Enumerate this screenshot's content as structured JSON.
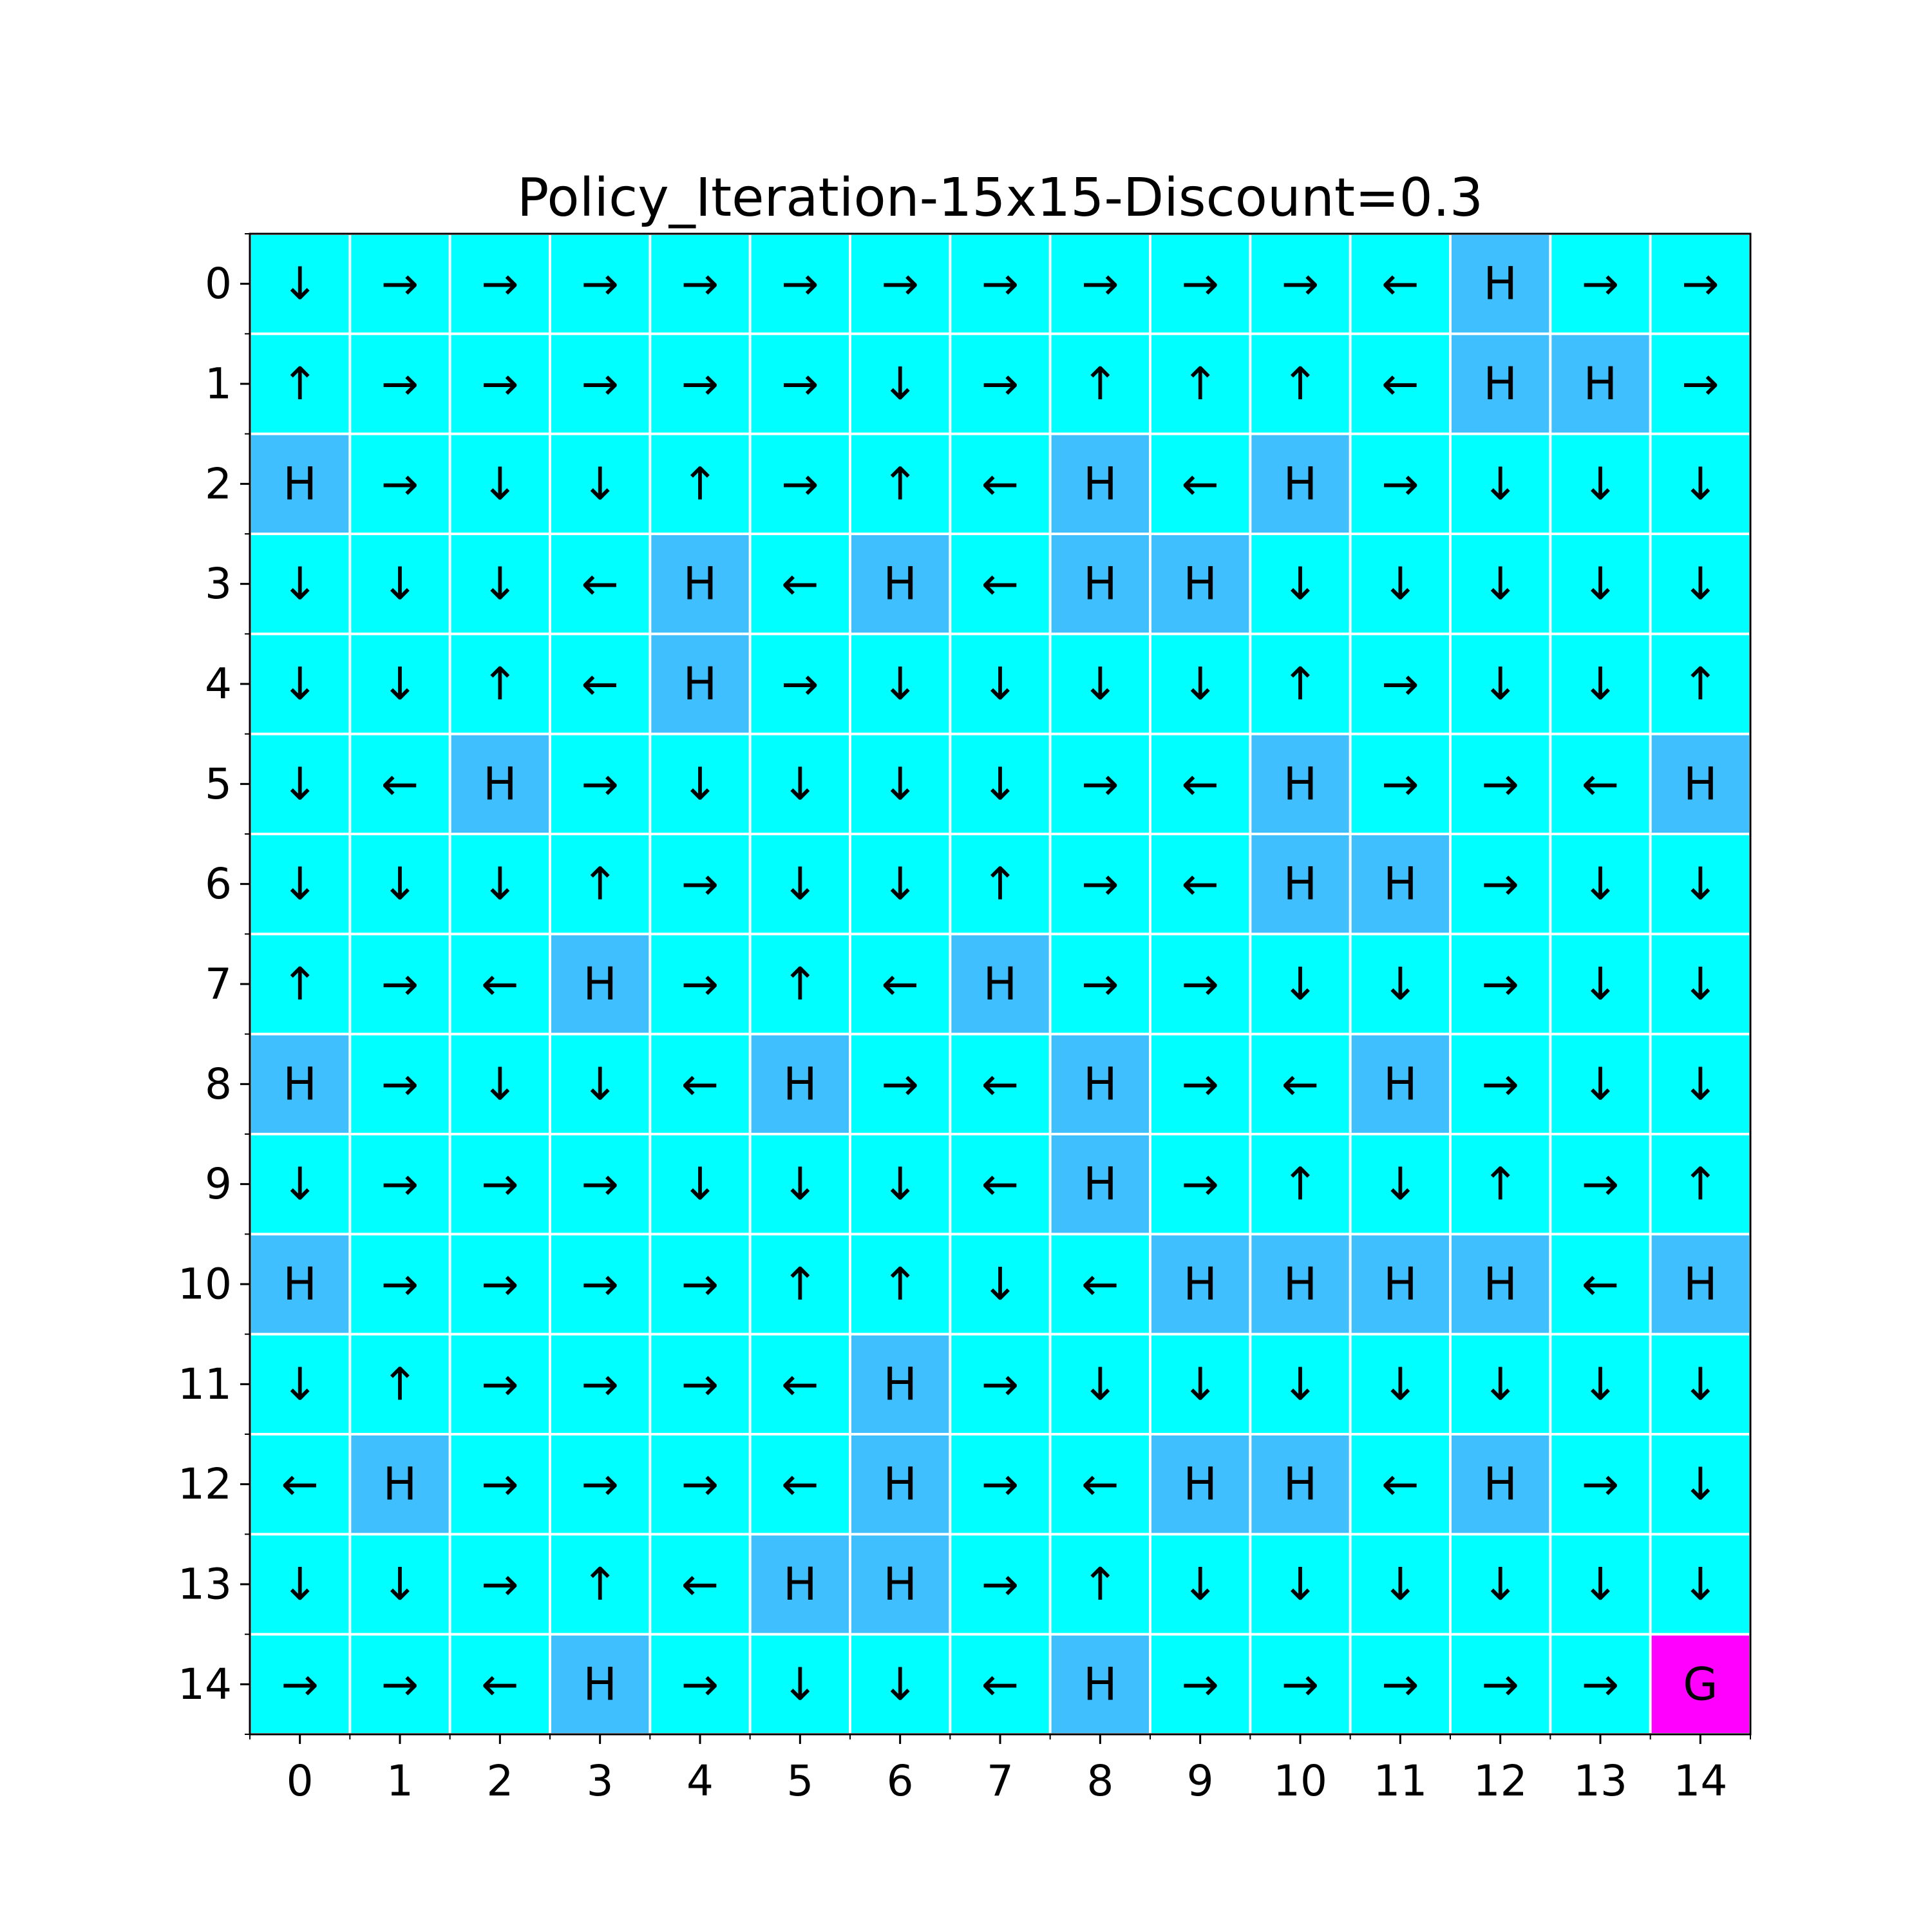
{
  "chart_data": {
    "type": "heatmap",
    "title": "Policy_Iteration-15x15-Discount=0.3",
    "xlabel": "",
    "ylabel": "",
    "x_ticks": [
      "0",
      "1",
      "2",
      "3",
      "4",
      "5",
      "6",
      "7",
      "8",
      "9",
      "10",
      "11",
      "12",
      "13",
      "14"
    ],
    "y_ticks": [
      "0",
      "1",
      "2",
      "3",
      "4",
      "5",
      "6",
      "7",
      "8",
      "9",
      "10",
      "11",
      "12",
      "13",
      "14"
    ],
    "grid": [
      [
        "↓",
        "→",
        "→",
        "→",
        "→",
        "→",
        "→",
        "→",
        "→",
        "→",
        "→",
        "←",
        "H",
        "→",
        "→"
      ],
      [
        "↑",
        "→",
        "→",
        "→",
        "→",
        "→",
        "↓",
        "→",
        "↑",
        "↑",
        "↑",
        "←",
        "H",
        "H",
        "→"
      ],
      [
        "H",
        "→",
        "↓",
        "↓",
        "↑",
        "→",
        "↑",
        "←",
        "H",
        "←",
        "H",
        "→",
        "↓",
        "↓",
        "↓"
      ],
      [
        "↓",
        "↓",
        "↓",
        "←",
        "H",
        "←",
        "H",
        "←",
        "H",
        "H",
        "↓",
        "↓",
        "↓",
        "↓",
        "↓"
      ],
      [
        "↓",
        "↓",
        "↑",
        "←",
        "H",
        "→",
        "↓",
        "↓",
        "↓",
        "↓",
        "↑",
        "→",
        "↓",
        "↓",
        "↑"
      ],
      [
        "↓",
        "←",
        "H",
        "→",
        "↓",
        "↓",
        "↓",
        "↓",
        "→",
        "←",
        "H",
        "→",
        "→",
        "←",
        "H"
      ],
      [
        "↓",
        "↓",
        "↓",
        "↑",
        "→",
        "↓",
        "↓",
        "↑",
        "→",
        "←",
        "H",
        "H",
        "→",
        "↓",
        "↓"
      ],
      [
        "↑",
        "→",
        "←",
        "H",
        "→",
        "↑",
        "←",
        "H",
        "→",
        "→",
        "↓",
        "↓",
        "→",
        "↓",
        "↓"
      ],
      [
        "H",
        "→",
        "↓",
        "↓",
        "←",
        "H",
        "→",
        "←",
        "H",
        "→",
        "←",
        "H",
        "→",
        "↓",
        "↓"
      ],
      [
        "↓",
        "→",
        "→",
        "→",
        "↓",
        "↓",
        "↓",
        "←",
        "H",
        "→",
        "↑",
        "↓",
        "↑",
        "→",
        "↑"
      ],
      [
        "H",
        "→",
        "→",
        "→",
        "→",
        "↑",
        "↑",
        "↓",
        "←",
        "H",
        "H",
        "H",
        "H",
        "←",
        "H"
      ],
      [
        "↓",
        "↑",
        "→",
        "→",
        "→",
        "←",
        "H",
        "→",
        "↓",
        "↓",
        "↓",
        "↓",
        "↓",
        "↓",
        "↓"
      ],
      [
        "←",
        "H",
        "→",
        "→",
        "→",
        "←",
        "H",
        "→",
        "←",
        "H",
        "H",
        "←",
        "H",
        "→",
        "↓"
      ],
      [
        "↓",
        "↓",
        "→",
        "↑",
        "←",
        "H",
        "H",
        "→",
        "↑",
        "↓",
        "↓",
        "↓",
        "↓",
        "↓",
        "↓"
      ],
      [
        "→",
        "→",
        "←",
        "H",
        "→",
        "↓",
        "↓",
        "←",
        "H",
        "→",
        "→",
        "→",
        "→",
        "→",
        "G"
      ]
    ],
    "colors": {
      "cell": "#00ffff",
      "hole": "#40bfff",
      "goal": "#ff00ff",
      "cell_border": "#ffffff",
      "axes": "#000000"
    },
    "grid_lines": true,
    "legend": "none"
  }
}
